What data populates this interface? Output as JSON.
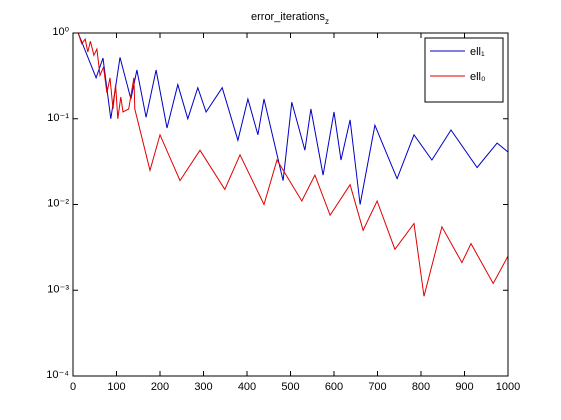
{
  "chart_data": {
    "type": "line",
    "title": "error_iterations",
    "title_subscript": "z",
    "log_y": true,
    "grid": false,
    "legend": "upper right",
    "xlim": [
      0,
      1000
    ],
    "xticks": [
      0,
      100,
      200,
      300,
      400,
      500,
      600,
      700,
      800,
      900,
      1000
    ],
    "ylim": [
      0.0001,
      1
    ],
    "yticks": [
      {
        "value": 0.0001,
        "label": "10⁻⁴"
      },
      {
        "value": 0.001,
        "label": "10⁻³"
      },
      {
        "value": 0.01,
        "label": "10⁻²"
      },
      {
        "value": 0.1,
        "label": "10⁻¹"
      },
      {
        "value": 1,
        "label": "10⁰"
      }
    ],
    "series": [
      {
        "name": "ell₁",
        "color": "#0000c8",
        "x": [
          12,
          53,
          69,
          87,
          108,
          133,
          147,
          168,
          191,
          216,
          241,
          264,
          287,
          306,
          343,
          379,
          402,
          425,
          439,
          483,
          503,
          533,
          547,
          575,
          600,
          616,
          637,
          660,
          694,
          745,
          784,
          825,
          869,
          929,
          975,
          1000
        ],
        "values": [
          1,
          0.3,
          0.51,
          0.1,
          0.52,
          0.17,
          0.37,
          0.104,
          0.37,
          0.078,
          0.25,
          0.1,
          0.23,
          0.12,
          0.23,
          0.056,
          0.17,
          0.065,
          0.17,
          0.019,
          0.156,
          0.043,
          0.13,
          0.022,
          0.12,
          0.033,
          0.097,
          0.01,
          0.084,
          0.02,
          0.065,
          0.033,
          0.074,
          0.027,
          0.052,
          0.041
        ]
      },
      {
        "name": "ell₀",
        "color": "#e00000",
        "x": [
          12,
          20,
          28,
          34,
          40,
          48,
          55,
          62,
          70,
          78,
          85,
          92,
          98,
          103,
          110,
          115,
          128,
          140,
          142,
          177,
          200,
          246,
          292,
          349,
          384,
          439,
          469,
          526,
          556,
          591,
          637,
          667,
          699,
          740,
          784,
          807,
          848,
          894,
          915,
          966,
          1000
        ],
        "values": [
          1,
          0.75,
          0.85,
          0.6,
          0.8,
          0.55,
          0.65,
          0.32,
          0.4,
          0.2,
          0.3,
          0.13,
          0.25,
          0.1,
          0.18,
          0.12,
          0.13,
          0.3,
          0.13,
          0.025,
          0.065,
          0.019,
          0.043,
          0.015,
          0.038,
          0.01,
          0.033,
          0.011,
          0.022,
          0.0075,
          0.017,
          0.005,
          0.011,
          0.003,
          0.006,
          0.00085,
          0.0055,
          0.0021,
          0.0035,
          0.0012,
          0.0025
        ]
      }
    ]
  }
}
